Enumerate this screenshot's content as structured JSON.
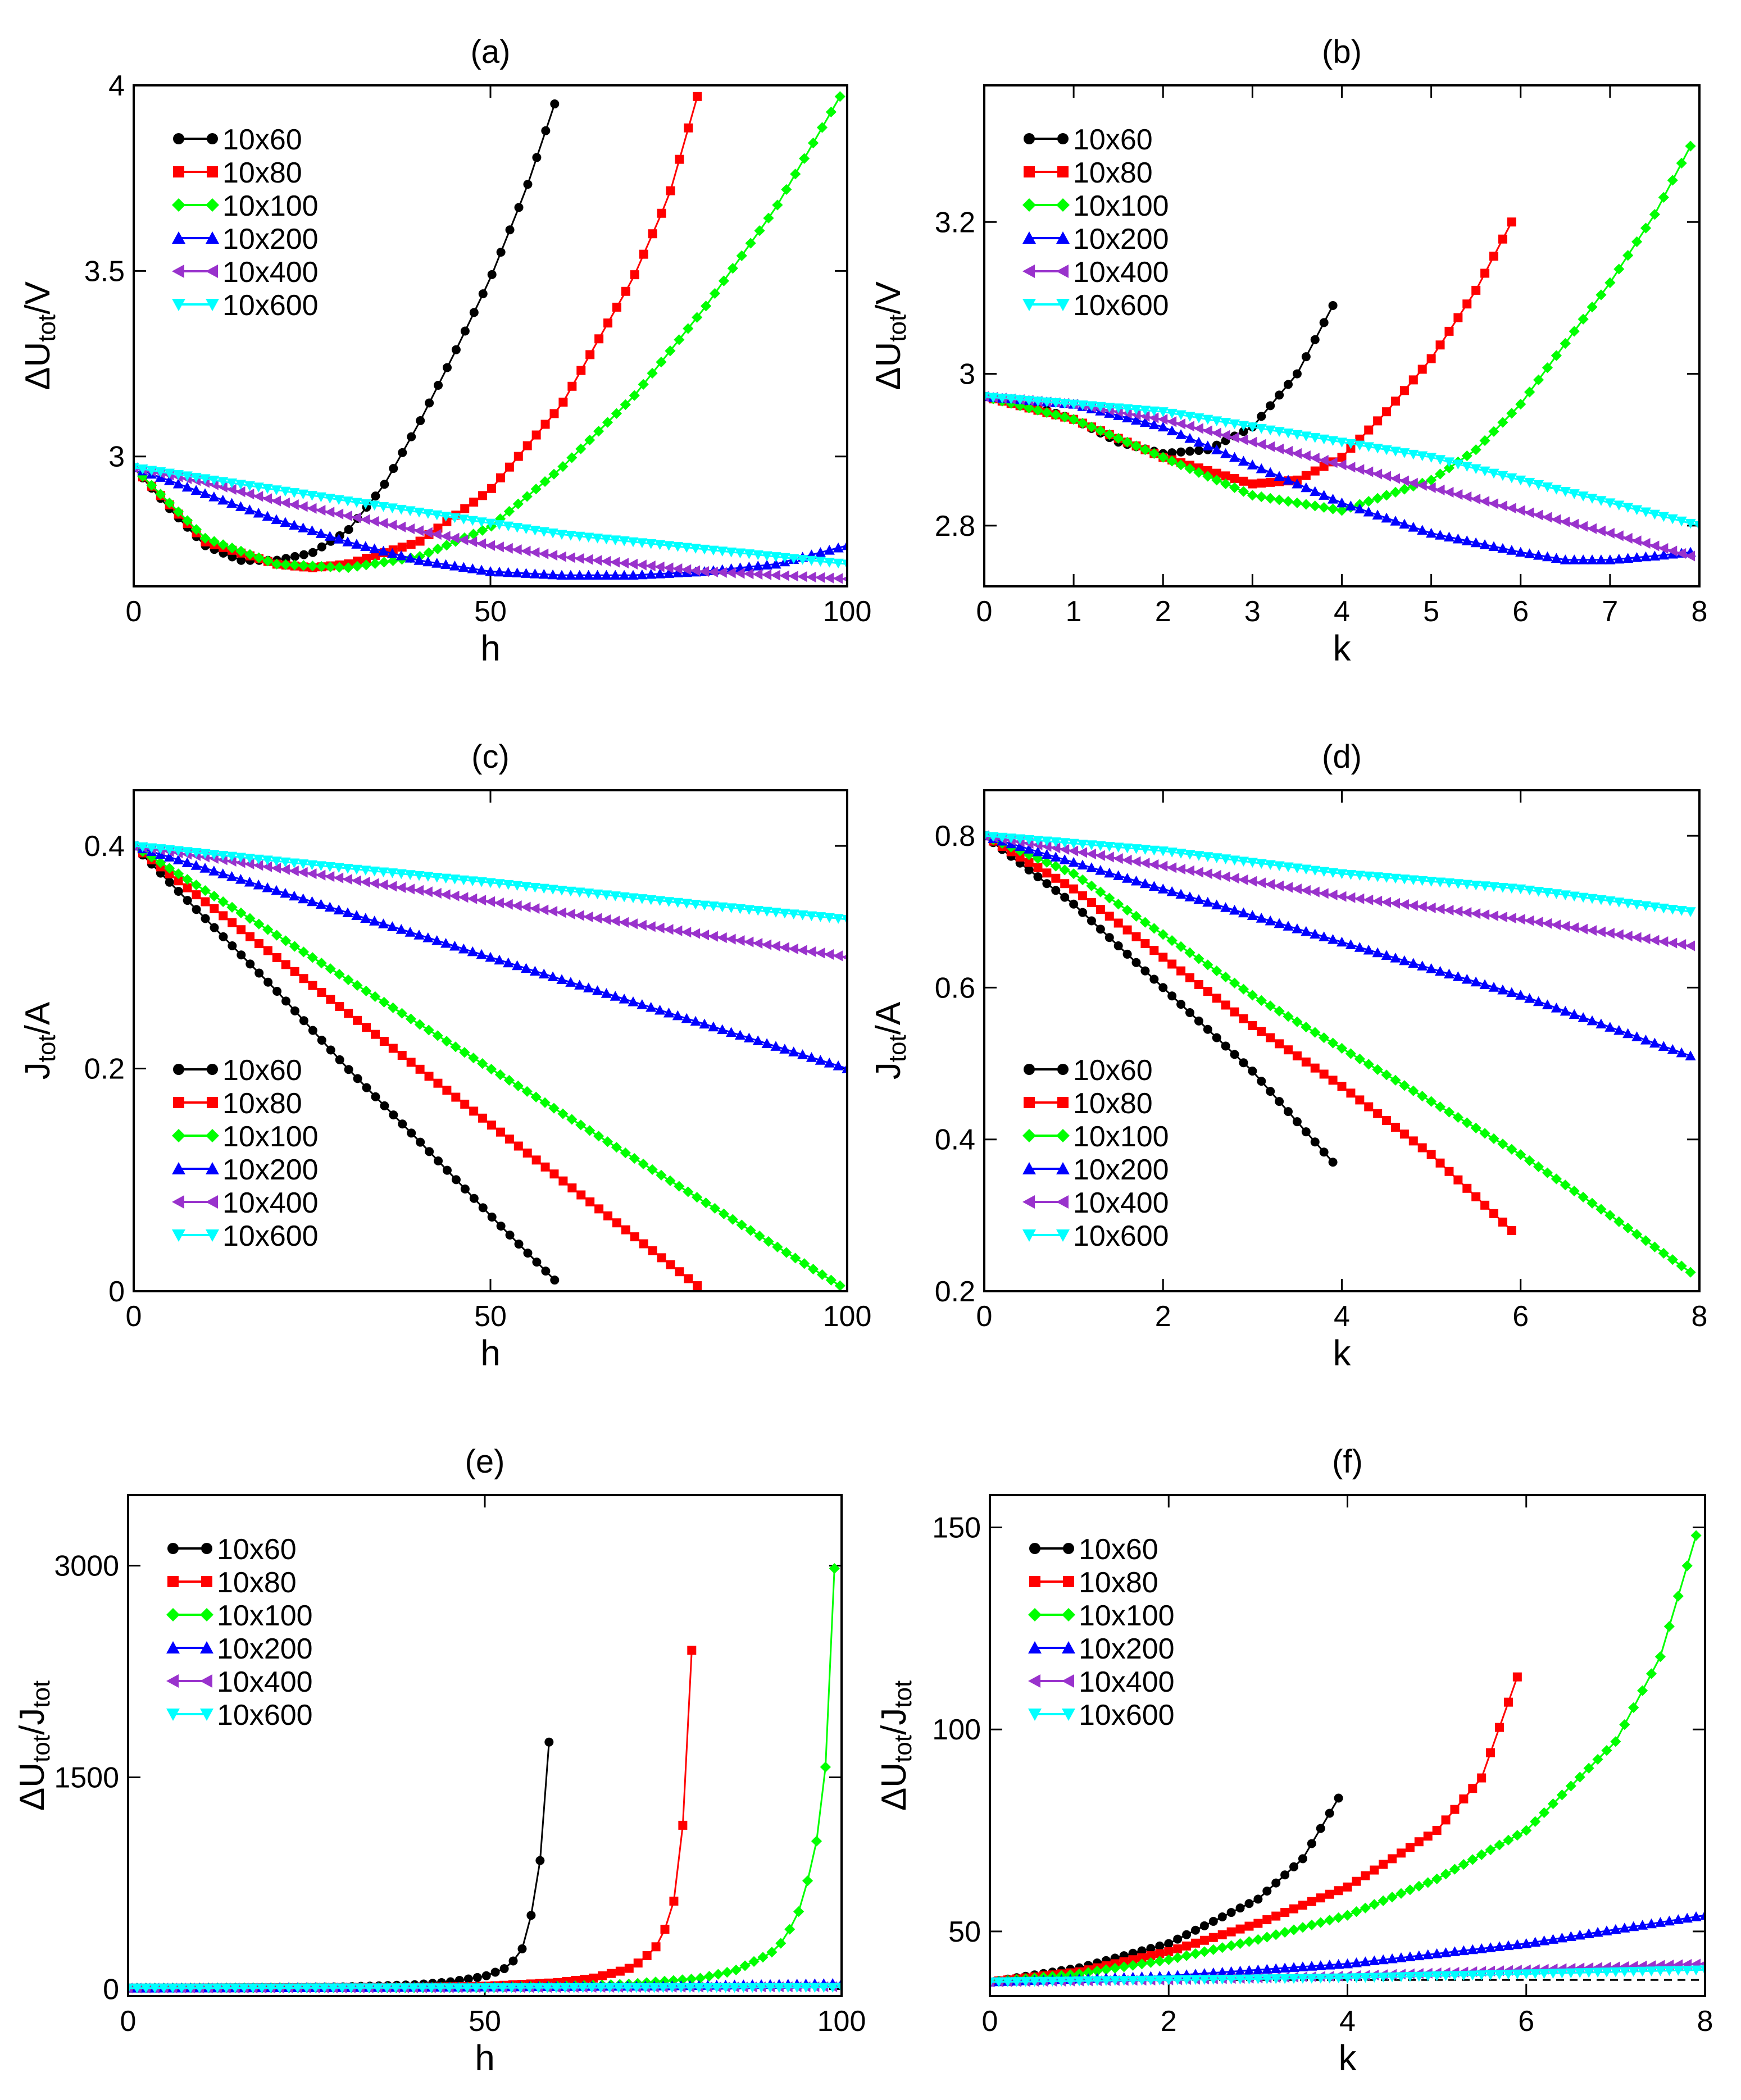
{
  "series_styles": [
    {
      "name": "10x60",
      "color": "#000000",
      "marker": "circle"
    },
    {
      "name": "10x80",
      "color": "#ff0000",
      "marker": "square"
    },
    {
      "name": "10x100",
      "color": "#00ff00",
      "marker": "diamond"
    },
    {
      "name": "10x200",
      "color": "#0000ff",
      "marker": "triangle-up"
    },
    {
      "name": "10x400",
      "color": "#9932cc",
      "marker": "triangle-left"
    },
    {
      "name": "10x600",
      "color": "#00ffff",
      "marker": "triangle-down"
    }
  ],
  "chart_data": [
    {
      "panel": "(a)",
      "type": "line",
      "xlabel": "h",
      "ylabel": "ΔU_tot/V",
      "xlim": [
        0,
        100
      ],
      "ylim": [
        2.65,
        4.0
      ],
      "xticks": [
        0,
        50,
        100
      ],
      "yticks": [
        3,
        3.5,
        4
      ],
      "ytick_labels": [
        "3",
        "3.5",
        "4"
      ],
      "legend_position": "top-left",
      "series": [
        {
          "name": "10x60",
          "x": [
            0,
            5,
            10,
            15,
            20,
            25,
            30,
            35,
            40,
            45,
            50,
            55,
            59
          ],
          "y": [
            2.97,
            2.86,
            2.76,
            2.72,
            2.72,
            2.74,
            2.8,
            2.92,
            3.09,
            3.28,
            3.48,
            3.72,
            3.95
          ]
        },
        {
          "name": "10x80",
          "x": [
            0,
            10,
            20,
            25,
            30,
            40,
            50,
            60,
            70,
            75,
            79
          ],
          "y": [
            2.97,
            2.77,
            2.71,
            2.7,
            2.71,
            2.77,
            2.91,
            3.14,
            3.48,
            3.7,
            3.97
          ]
        },
        {
          "name": "10x100",
          "x": [
            0,
            10,
            20,
            30,
            40,
            50,
            60,
            70,
            80,
            90,
            99
          ],
          "y": [
            2.97,
            2.78,
            2.71,
            2.7,
            2.73,
            2.81,
            2.97,
            3.16,
            3.4,
            3.67,
            3.97
          ]
        },
        {
          "name": "10x200",
          "x": [
            0,
            10,
            20,
            30,
            40,
            50,
            60,
            70,
            80,
            90,
            100
          ],
          "y": [
            2.97,
            2.9,
            2.83,
            2.77,
            2.72,
            2.69,
            2.68,
            2.68,
            2.69,
            2.71,
            2.76
          ]
        },
        {
          "name": "10x400",
          "x": [
            0,
            10,
            20,
            30,
            40,
            50,
            60,
            70,
            80,
            90,
            100
          ],
          "y": [
            2.97,
            2.93,
            2.88,
            2.84,
            2.8,
            2.76,
            2.73,
            2.71,
            2.69,
            2.68,
            2.67
          ]
        },
        {
          "name": "10x600",
          "x": [
            0,
            10,
            20,
            30,
            40,
            50,
            60,
            70,
            80,
            90,
            100
          ],
          "y": [
            2.97,
            2.94,
            2.91,
            2.88,
            2.85,
            2.82,
            2.79,
            2.77,
            2.75,
            2.73,
            2.71
          ]
        }
      ]
    },
    {
      "panel": "(b)",
      "type": "line",
      "xlabel": "k",
      "ylabel": "ΔU_tot/V",
      "xlim": [
        0,
        8
      ],
      "ylim": [
        2.72,
        3.38
      ],
      "xticks": [
        0,
        1,
        2,
        3,
        4,
        5,
        6,
        7,
        8
      ],
      "yticks": [
        2.8,
        3.0,
        3.2
      ],
      "ytick_labels": [
        "2.8",
        "3",
        "3.2"
      ],
      "legend_position": "top-left",
      "series": [
        {
          "name": "10x60",
          "x": [
            0,
            0.5,
            1,
            1.5,
            2,
            2.5,
            3,
            3.5,
            3.9
          ],
          "y": [
            2.97,
            2.96,
            2.94,
            2.91,
            2.895,
            2.9,
            2.93,
            3.0,
            3.09
          ]
        },
        {
          "name": "10x80",
          "x": [
            0,
            1,
            2,
            3,
            3.5,
            4,
            4.5,
            5,
            5.5,
            5.9
          ],
          "y": [
            2.97,
            2.94,
            2.89,
            2.855,
            2.86,
            2.89,
            2.95,
            3.02,
            3.11,
            3.2
          ]
        },
        {
          "name": "10x100",
          "x": [
            0,
            1,
            2,
            3,
            4,
            5,
            5.5,
            6,
            6.5,
            7,
            7.5,
            7.9
          ],
          "y": [
            2.97,
            2.94,
            2.89,
            2.84,
            2.82,
            2.86,
            2.9,
            2.96,
            3.04,
            3.12,
            3.21,
            3.3
          ]
        },
        {
          "name": "10x200",
          "x": [
            0,
            1,
            2,
            3,
            4,
            5,
            6,
            6.5,
            7,
            7.5,
            7.9
          ],
          "y": [
            2.97,
            2.96,
            2.93,
            2.88,
            2.83,
            2.79,
            2.765,
            2.755,
            2.755,
            2.76,
            2.765
          ]
        },
        {
          "name": "10x400",
          "x": [
            0,
            1,
            2,
            3,
            4,
            5,
            6,
            7,
            7.9
          ],
          "y": [
            2.97,
            2.96,
            2.94,
            2.91,
            2.88,
            2.85,
            2.82,
            2.79,
            2.76
          ]
        },
        {
          "name": "10x600",
          "x": [
            0,
            1,
            2,
            3,
            4,
            5,
            6,
            7,
            8
          ],
          "y": [
            2.97,
            2.96,
            2.95,
            2.93,
            2.91,
            2.89,
            2.86,
            2.83,
            2.8
          ]
        }
      ]
    },
    {
      "panel": "(c)",
      "type": "line",
      "xlabel": "h",
      "ylabel": "J_tot/A",
      "xlim": [
        0,
        100
      ],
      "ylim": [
        0,
        0.45
      ],
      "xticks": [
        0,
        50,
        100
      ],
      "yticks": [
        0,
        0.2,
        0.4
      ],
      "ytick_labels": [
        "0",
        "0.2",
        "0.4"
      ],
      "legend_position": "bottom-left",
      "series": [
        {
          "name": "10x60",
          "x": [
            0,
            10,
            20,
            30,
            40,
            50,
            59
          ],
          "y": [
            0.4,
            0.335,
            0.27,
            0.2,
            0.135,
            0.068,
            0.01
          ]
        },
        {
          "name": "10x80",
          "x": [
            0,
            20,
            40,
            60,
            79
          ],
          "y": [
            0.4,
            0.3,
            0.2,
            0.1,
            0.005
          ]
        },
        {
          "name": "10x100",
          "x": [
            0,
            25,
            50,
            75,
            99
          ],
          "y": [
            0.4,
            0.3,
            0.2,
            0.1,
            0.005
          ]
        },
        {
          "name": "10x200",
          "x": [
            0,
            25,
            50,
            75,
            100
          ],
          "y": [
            0.4,
            0.35,
            0.3,
            0.25,
            0.2
          ]
        },
        {
          "name": "10x400",
          "x": [
            0,
            25,
            50,
            75,
            100
          ],
          "y": [
            0.4,
            0.375,
            0.35,
            0.325,
            0.3
          ]
        },
        {
          "name": "10x600",
          "x": [
            0,
            25,
            50,
            75,
            100
          ],
          "y": [
            0.4,
            0.383,
            0.367,
            0.35,
            0.334
          ]
        }
      ]
    },
    {
      "panel": "(d)",
      "type": "line",
      "xlabel": "k",
      "ylabel": "J_tot/A",
      "xlim": [
        0,
        8
      ],
      "ylim": [
        0.2,
        0.86
      ],
      "xticks": [
        0,
        2,
        4,
        6,
        8
      ],
      "yticks": [
        0.2,
        0.4,
        0.6,
        0.8
      ],
      "ytick_labels": [
        "0.2",
        "0.4",
        "0.6",
        "0.8"
      ],
      "legend_position": "bottom-left",
      "series": [
        {
          "name": "10x60",
          "x": [
            0,
            1,
            2,
            3,
            3.9
          ],
          "y": [
            0.8,
            0.71,
            0.6,
            0.49,
            0.37
          ]
        },
        {
          "name": "10x80",
          "x": [
            0,
            1,
            2,
            3,
            4,
            5,
            5.9
          ],
          "y": [
            0.8,
            0.73,
            0.64,
            0.55,
            0.47,
            0.38,
            0.28
          ]
        },
        {
          "name": "10x100",
          "x": [
            0,
            1,
            2,
            3,
            4,
            5,
            6,
            7,
            7.9
          ],
          "y": [
            0.8,
            0.75,
            0.67,
            0.59,
            0.52,
            0.45,
            0.38,
            0.3,
            0.225
          ]
        },
        {
          "name": "10x200",
          "x": [
            0,
            2,
            4,
            6,
            7.9
          ],
          "y": [
            0.8,
            0.73,
            0.66,
            0.59,
            0.51
          ]
        },
        {
          "name": "10x400",
          "x": [
            0,
            2,
            4,
            6,
            7.9
          ],
          "y": [
            0.8,
            0.76,
            0.72,
            0.69,
            0.655
          ]
        },
        {
          "name": "10x600",
          "x": [
            0,
            2,
            4,
            6,
            7.9
          ],
          "y": [
            0.8,
            0.78,
            0.75,
            0.73,
            0.7
          ]
        }
      ]
    },
    {
      "panel": "(e)",
      "type": "line",
      "xlabel": "h",
      "ylabel": "ΔU_tot/J_tot",
      "xlim": [
        0,
        100
      ],
      "ylim": [
        -50,
        3500
      ],
      "xticks": [
        0,
        50,
        100
      ],
      "yticks": [
        0,
        1500,
        3000
      ],
      "ytick_labels": [
        "0",
        "1500",
        "3000"
      ],
      "legend_position": "top-left",
      "series": [
        {
          "name": "10x60",
          "x": [
            0,
            20,
            30,
            40,
            45,
            50,
            53,
            55,
            56,
            57,
            58,
            59
          ],
          "y": [
            7,
            10,
            15,
            30,
            50,
            90,
            150,
            250,
            400,
            650,
            1000,
            1750
          ]
        },
        {
          "name": "10x80",
          "x": [
            0,
            40,
            50,
            60,
            65,
            70,
            72,
            74,
            76,
            77,
            78,
            79
          ],
          "y": [
            7,
            12,
            20,
            45,
            75,
            140,
            200,
            300,
            500,
            750,
            1300,
            2400
          ]
        },
        {
          "name": "10x100",
          "x": [
            0,
            50,
            60,
            70,
            80,
            85,
            90,
            92,
            94,
            96,
            97,
            98,
            99
          ],
          "y": [
            7,
            12,
            20,
            35,
            75,
            130,
            250,
            350,
            550,
            900,
            1200,
            1700,
            2980
          ]
        },
        {
          "name": "10x200",
          "x": [
            0,
            25,
            50,
            75,
            100
          ],
          "y": [
            7,
            10,
            15,
            22,
            40
          ]
        },
        {
          "name": "10x400",
          "x": [
            0,
            25,
            50,
            75,
            100
          ],
          "y": [
            7,
            8,
            10,
            13,
            17
          ]
        },
        {
          "name": "10x600",
          "x": [
            0,
            25,
            50,
            75,
            100
          ],
          "y": [
            7,
            8,
            9,
            10,
            12
          ]
        }
      ]
    },
    {
      "panel": "(f)",
      "type": "line",
      "xlabel": "k",
      "ylabel": "ΔU_tot/J_tot",
      "xlim": [
        0,
        8
      ],
      "ylim": [
        34,
        158
      ],
      "xticks": [
        0,
        2,
        4,
        6,
        8
      ],
      "yticks": [
        50,
        100,
        150
      ],
      "ytick_labels": [
        "50",
        "100",
        "150"
      ],
      "reference_line": 38,
      "legend_position": "top-left",
      "series": [
        {
          "name": "10x60",
          "x": [
            0,
            1,
            2,
            3,
            3.5,
            3.9
          ],
          "y": [
            37.5,
            41,
            47,
            58,
            68,
            83
          ]
        },
        {
          "name": "10x80",
          "x": [
            0,
            1,
            2,
            3,
            4,
            5,
            5.5,
            5.9
          ],
          "y": [
            37.5,
            40,
            45,
            52,
            61,
            75,
            88,
            113
          ]
        },
        {
          "name": "10x100",
          "x": [
            0,
            1,
            2,
            3,
            4,
            5,
            6,
            7,
            7.5,
            7.9
          ],
          "y": [
            37.5,
            39.5,
            43,
            48,
            54,
            63,
            75,
            97,
            118,
            148
          ]
        },
        {
          "name": "10x200",
          "x": [
            0,
            2,
            4,
            6,
            8
          ],
          "y": [
            37.5,
            39,
            42,
            47,
            54
          ]
        },
        {
          "name": "10x400",
          "x": [
            0,
            2,
            4,
            6,
            8
          ],
          "y": [
            37.5,
            38,
            39,
            40.5,
            42
          ]
        },
        {
          "name": "10x600",
          "x": [
            0,
            2,
            4,
            6,
            8
          ],
          "y": [
            37.5,
            38,
            38.5,
            39.5,
            40.5
          ]
        }
      ]
    }
  ]
}
